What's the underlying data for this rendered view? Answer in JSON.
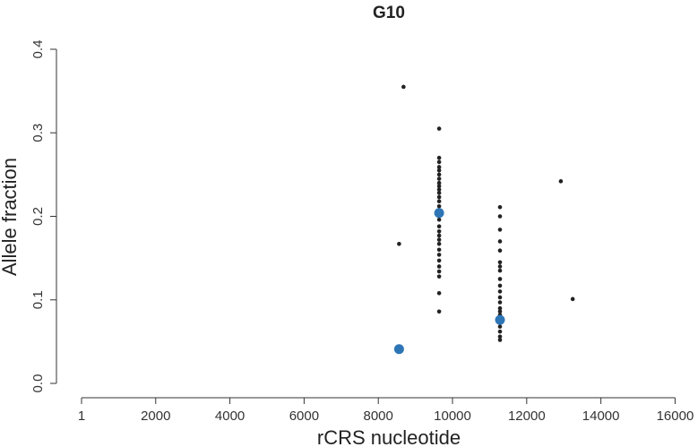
{
  "chart_data": {
    "type": "scatter",
    "title": "G10",
    "xlabel": "rCRS nucleotide",
    "ylabel": "Allele fraction",
    "xlim": [
      1,
      16569
    ],
    "ylim": [
      0,
      0.4
    ],
    "x_ticks": [
      1,
      2000,
      4000,
      6000,
      8000,
      10000,
      12000,
      14000,
      16000
    ],
    "x_tick_labels": [
      "1",
      "2000",
      "4000",
      "6000",
      "8000",
      "10000",
      "12000",
      "14000",
      "16000"
    ],
    "y_ticks": [
      0.0,
      0.1,
      0.2,
      0.3,
      0.4
    ],
    "y_tick_labels": [
      "0.0",
      "0.1",
      "0.2",
      "0.3",
      "0.4"
    ],
    "grid": false,
    "colors": {
      "series_dark": "#222222",
      "series_highlight": "#2e75b6"
    },
    "series": [
      {
        "color": "#222222",
        "marker_size": "small",
        "points": [
          [
            8680,
            0.355
          ],
          [
            8560,
            0.167
          ],
          [
            9640,
            0.305
          ],
          [
            9640,
            0.27
          ],
          [
            9640,
            0.265
          ],
          [
            9640,
            0.259
          ],
          [
            9640,
            0.255
          ],
          [
            9640,
            0.25
          ],
          [
            9640,
            0.245
          ],
          [
            9640,
            0.24
          ],
          [
            9640,
            0.236
          ],
          [
            9640,
            0.232
          ],
          [
            9640,
            0.228
          ],
          [
            9640,
            0.223
          ],
          [
            9640,
            0.218
          ],
          [
            9640,
            0.212
          ],
          [
            9640,
            0.204
          ],
          [
            9640,
            0.196
          ],
          [
            9640,
            0.188
          ],
          [
            9640,
            0.182
          ],
          [
            9640,
            0.177
          ],
          [
            9640,
            0.172
          ],
          [
            9640,
            0.167
          ],
          [
            9640,
            0.16
          ],
          [
            9640,
            0.154
          ],
          [
            9640,
            0.147
          ],
          [
            9640,
            0.14
          ],
          [
            9640,
            0.134
          ],
          [
            9640,
            0.128
          ],
          [
            9640,
            0.108
          ],
          [
            9640,
            0.086
          ],
          [
            11280,
            0.211
          ],
          [
            11280,
            0.2
          ],
          [
            11280,
            0.184
          ],
          [
            11280,
            0.17
          ],
          [
            11280,
            0.159
          ],
          [
            11280,
            0.145
          ],
          [
            11280,
            0.14
          ],
          [
            11280,
            0.135
          ],
          [
            11280,
            0.125
          ],
          [
            11280,
            0.117
          ],
          [
            11280,
            0.11
          ],
          [
            11280,
            0.103
          ],
          [
            11280,
            0.097
          ],
          [
            11280,
            0.09
          ],
          [
            11280,
            0.086
          ],
          [
            11280,
            0.082
          ],
          [
            11280,
            0.078
          ],
          [
            11280,
            0.073
          ],
          [
            11280,
            0.068
          ],
          [
            11280,
            0.062
          ],
          [
            11280,
            0.056
          ],
          [
            11280,
            0.052
          ],
          [
            12920,
            0.242
          ],
          [
            13240,
            0.101
          ]
        ]
      },
      {
        "color": "#2e75b6",
        "marker_size": "large",
        "points": [
          [
            9640,
            0.204
          ],
          [
            8560,
            0.041
          ],
          [
            11280,
            0.076
          ]
        ]
      }
    ]
  }
}
